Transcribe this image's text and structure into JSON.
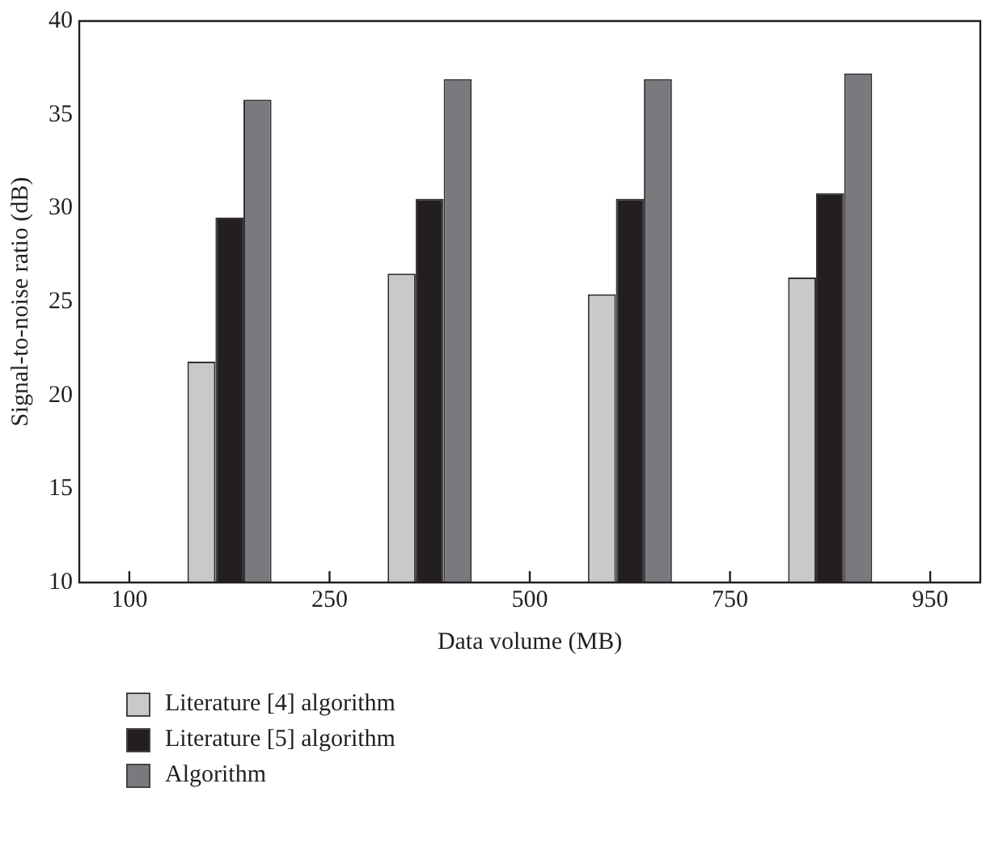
{
  "chart_data": {
    "type": "bar",
    "xlabel": "Data volume (MB)",
    "ylabel": "Signal-to-noise ratio (dB)",
    "categories": [
      "100",
      null,
      "250",
      null,
      "500",
      null,
      "750",
      null,
      "950"
    ],
    "ylim": [
      10,
      40
    ],
    "yticks": [
      10,
      15,
      20,
      25,
      30,
      35,
      40
    ],
    "series": [
      {
        "name": "Literature [4] algorithm",
        "color": "#c8c9cb",
        "values": [
          null,
          21.8,
          null,
          26.5,
          null,
          25.4,
          null,
          26.3,
          null
        ]
      },
      {
        "name": "Literature [5] algorithm",
        "color": "#231f20",
        "values": [
          null,
          29.5,
          null,
          30.5,
          null,
          30.5,
          null,
          30.8,
          null
        ]
      },
      {
        "name": "Algorithm",
        "color": "#797a7e",
        "values": [
          null,
          35.8,
          null,
          36.9,
          null,
          36.9,
          null,
          37.2,
          null
        ]
      }
    ],
    "grid": false,
    "legend": "bottom"
  }
}
